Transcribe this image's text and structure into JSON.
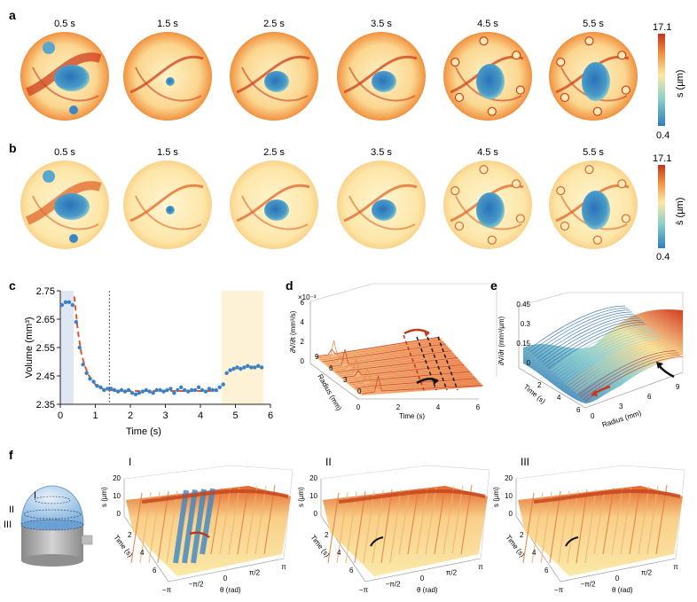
{
  "panels": {
    "a": {
      "letter": "a",
      "times": [
        "0.5 s",
        "1.5 s",
        "2.5 s",
        "3.5 s",
        "4.5 s",
        "5.5 s"
      ],
      "colorbar": {
        "max": "17.1",
        "min": "0.4",
        "label": "s (µm)"
      }
    },
    "b": {
      "letter": "b",
      "times": [
        "0.5 s",
        "1.5 s",
        "2.5 s",
        "3.5 s",
        "4.5 s",
        "5.5 s"
      ],
      "colorbar": {
        "max": "17.1",
        "min": "0.4",
        "label": "s̄ (µm)"
      }
    },
    "c": {
      "letter": "c"
    },
    "d": {
      "letter": "d",
      "exponent": "×10⁻³",
      "zlabel": "∂V/∂t (mm³/s)",
      "zticks": [
        "0",
        "2",
        "4",
        "6"
      ],
      "ylabel": "Radius (mm)",
      "yticks": [
        "9",
        "6",
        "3",
        "0"
      ],
      "xlabel": "Time (s)",
      "xticks": [
        "0",
        "2",
        "4",
        "6"
      ]
    },
    "e": {
      "letter": "e",
      "zlabel": "∂V/∂r (mm³/µm)",
      "zticks": [
        "0",
        "0.15",
        "0.3",
        "0.45"
      ],
      "ylabel": "Time (s)",
      "yticks": [
        "6",
        "4",
        "2"
      ],
      "xlabel": "Radius (mm)",
      "xticks": [
        "0",
        "3",
        "6",
        "9"
      ]
    },
    "f": {
      "letter": "f",
      "device_labels": [
        "I",
        "II",
        "III"
      ],
      "subplots": [
        {
          "roman": "I",
          "zlabel": "s (µm)",
          "zticks": [
            "0",
            "10",
            "20"
          ],
          "ylabel": "Time (s)",
          "yticks": [
            "2",
            "4",
            "6"
          ],
          "xlabel": "θ (rad)",
          "xticks": [
            "−π",
            "−π/2",
            "0",
            "π/2",
            "π"
          ]
        },
        {
          "roman": "II",
          "zlabel": "s (µm)",
          "zticks": [
            "0",
            "10",
            "20"
          ],
          "ylabel": "Time (s)",
          "yticks": [
            "2",
            "4",
            "6"
          ],
          "xlabel": "θ (rad)",
          "xticks": [
            "−π",
            "−π/2",
            "0",
            "π/2",
            "π"
          ]
        },
        {
          "roman": "III",
          "zlabel": "s (µm)",
          "zticks": [
            "0",
            "10",
            "20"
          ],
          "ylabel": "Time (s)",
          "yticks": [
            "2",
            "4",
            "6"
          ],
          "xlabel": "θ (rad)",
          "xticks": [
            "−π",
            "−π/2",
            "0",
            "π/2",
            "π"
          ]
        }
      ]
    }
  },
  "chart_data": {
    "type": "scatter",
    "xlabel": "Time (s)",
    "ylabel": "Volume (mm³)",
    "xlim": [
      0,
      6
    ],
    "ylim": [
      2.35,
      2.75
    ],
    "xticks": [
      "0",
      "1",
      "2",
      "3",
      "4",
      "5",
      "6"
    ],
    "yticks": [
      "2.35",
      "2.45",
      "2.55",
      "2.65",
      "2.75"
    ],
    "grid": false,
    "vline_x": 1.4,
    "shaded_regions": [
      {
        "x0": 0.0,
        "x1": 0.38,
        "color": "#dfe6f4"
      },
      {
        "x0": 4.6,
        "x1": 5.8,
        "color": "#fdf2d6"
      }
    ],
    "series": [
      {
        "style": "points",
        "color": "#3d7fc4",
        "x": [
          0.05,
          0.15,
          0.25,
          0.35,
          0.45,
          0.55,
          0.65,
          0.75,
          0.85,
          0.95,
          1.05,
          1.15,
          1.25,
          1.35,
          1.45,
          1.55,
          1.65,
          1.75,
          1.85,
          1.95,
          2.05,
          2.15,
          2.25,
          2.35,
          2.45,
          2.55,
          2.65,
          2.75,
          2.85,
          2.95,
          3.05,
          3.15,
          3.25,
          3.35,
          3.45,
          3.55,
          3.65,
          3.75,
          3.85,
          3.95,
          4.05,
          4.15,
          4.25,
          4.35,
          4.45,
          4.55,
          4.65,
          4.75,
          4.85,
          4.95,
          5.05,
          5.15,
          5.25,
          5.35,
          5.45,
          5.55,
          5.65,
          5.75
        ],
        "y": [
          2.7,
          2.71,
          2.71,
          2.7,
          2.64,
          2.55,
          2.49,
          2.46,
          2.44,
          2.43,
          2.415,
          2.41,
          2.4,
          2.405,
          2.405,
          2.4,
          2.395,
          2.4,
          2.395,
          2.4,
          2.39,
          2.385,
          2.39,
          2.395,
          2.4,
          2.395,
          2.39,
          2.4,
          2.4,
          2.395,
          2.4,
          2.405,
          2.39,
          2.4,
          2.41,
          2.4,
          2.395,
          2.4,
          2.4,
          2.41,
          2.4,
          2.395,
          2.405,
          2.4,
          2.4,
          2.41,
          2.42,
          2.46,
          2.47,
          2.475,
          2.48,
          2.475,
          2.48,
          2.485,
          2.48,
          2.48,
          2.485,
          2.48
        ]
      },
      {
        "style": "dashed-line",
        "color": "#e0572a",
        "x": [
          0.4,
          0.5,
          0.6,
          0.7,
          0.8,
          0.9,
          1.0,
          1.1,
          1.2,
          1.3,
          1.4,
          1.6,
          2.0,
          2.5,
          3.0,
          3.5,
          4.0,
          4.5
        ],
        "y": [
          2.73,
          2.61,
          2.53,
          2.485,
          2.455,
          2.435,
          2.42,
          2.41,
          2.405,
          2.4,
          2.4,
          2.398,
          2.397,
          2.397,
          2.397,
          2.397,
          2.397,
          2.397
        ]
      }
    ]
  }
}
